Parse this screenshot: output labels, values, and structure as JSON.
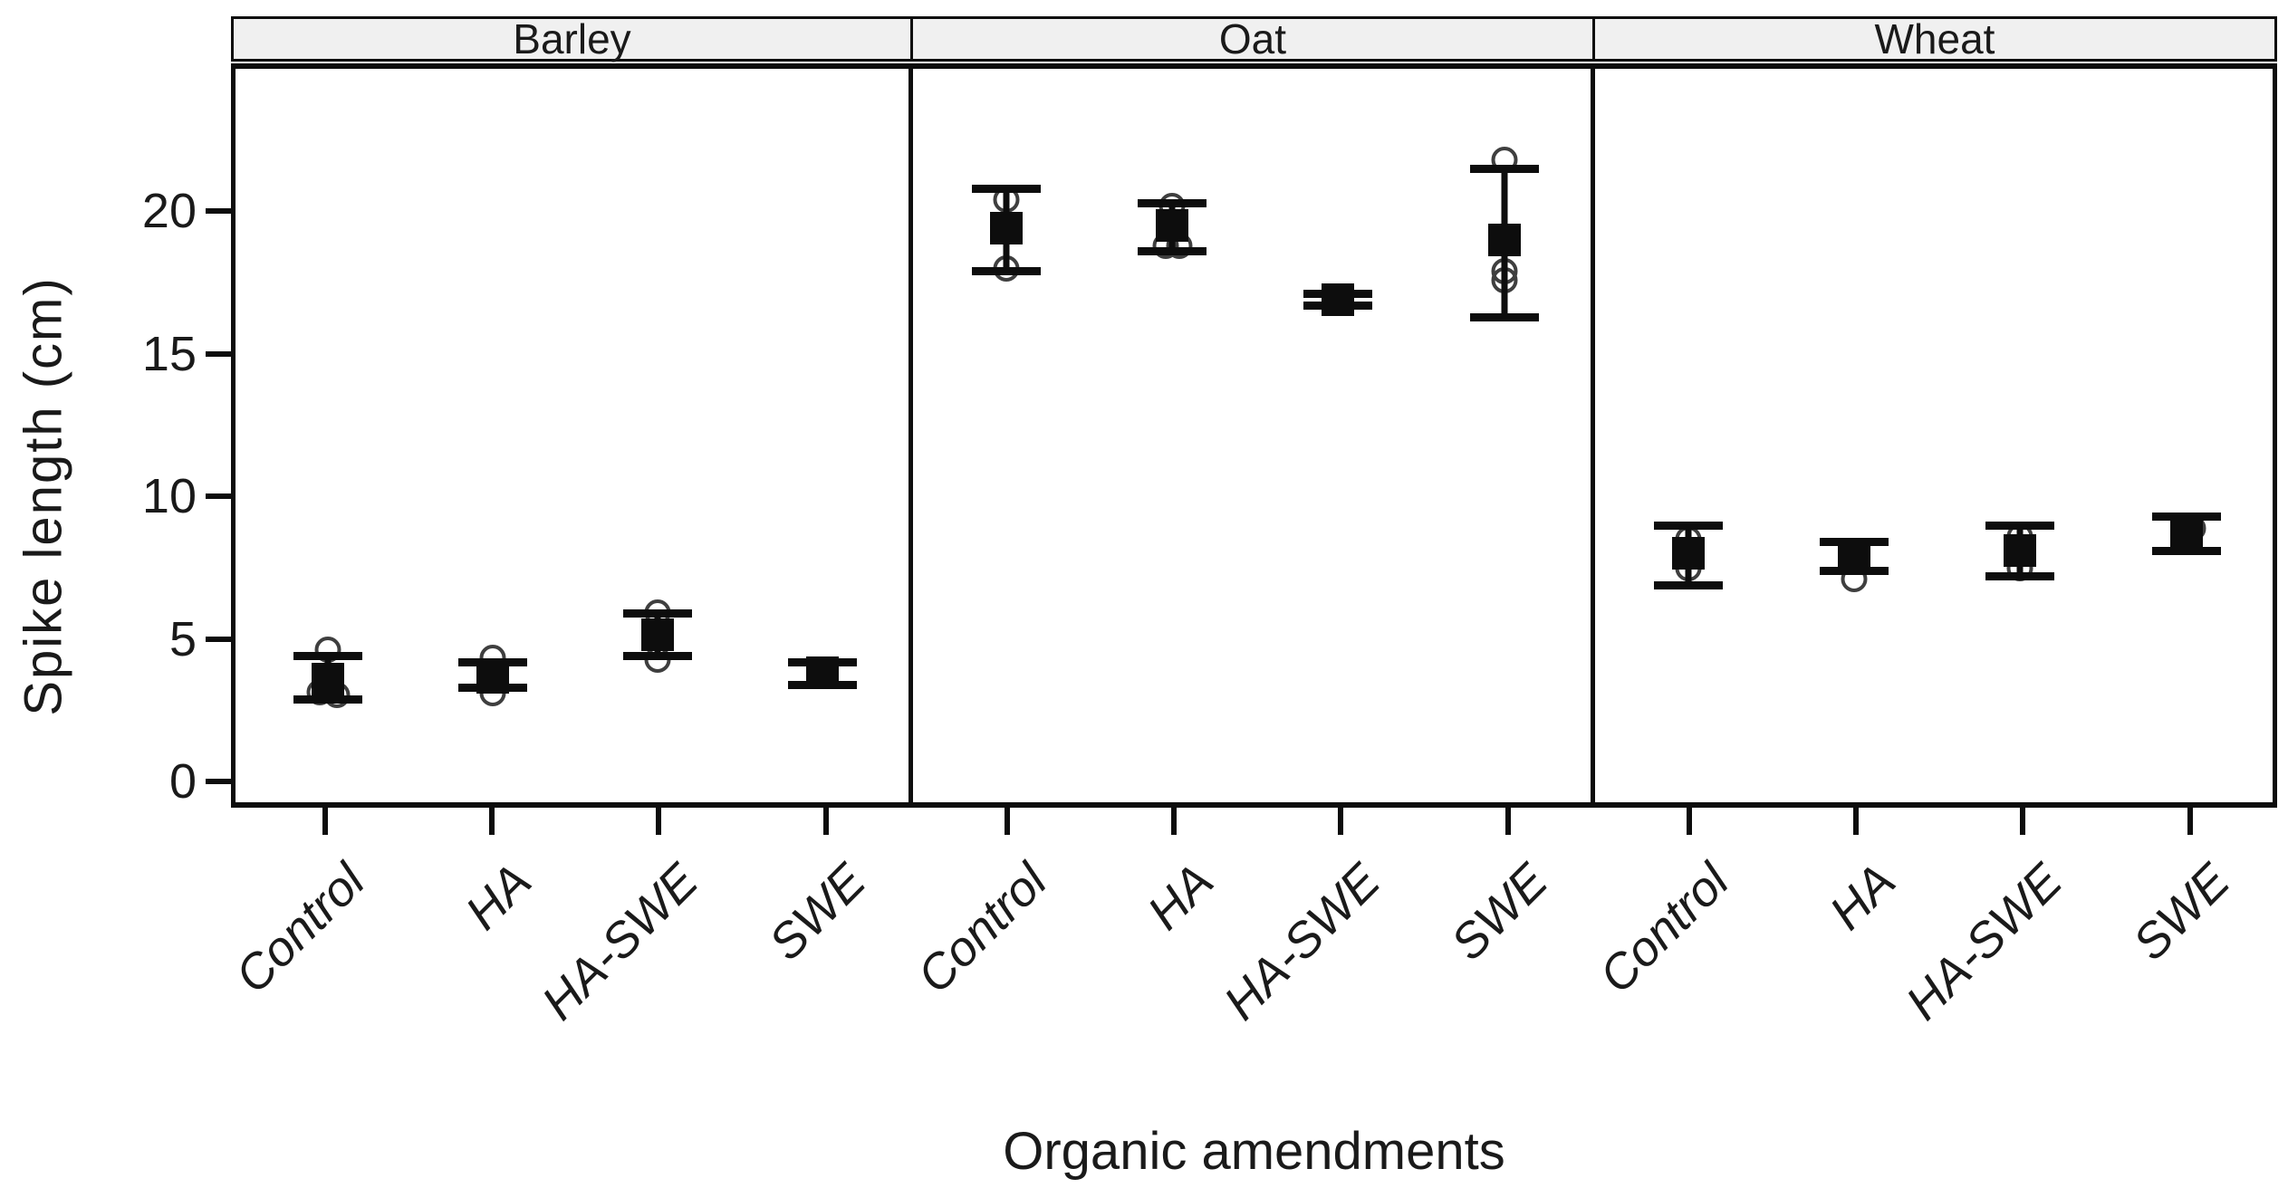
{
  "chart_data": {
    "type": "scatter",
    "subtype": "faceted-means-with-error-bars",
    "title": "",
    "xlabel": "Organic amendments",
    "ylabel": "Spike length (cm)",
    "ylim": [
      -0.9,
      25
    ],
    "yticks": [
      0,
      5,
      10,
      15,
      20
    ],
    "grid": false,
    "legend": "none",
    "mean_marker": "filled-square",
    "raw_marker": "open-circle",
    "categories": [
      "Control",
      "HA",
      "HA-SWE",
      "SWE"
    ],
    "facets": [
      {
        "label": "Barley",
        "groups": [
          {
            "category": "Control",
            "mean": 3.6,
            "lo": 2.9,
            "hi": 4.4,
            "raw": [
              {
                "v": 4.65,
                "dx": 0
              },
              {
                "v": 3.15,
                "dx": -9
              },
              {
                "v": 3.05,
                "dx": 10
              }
            ]
          },
          {
            "category": "HA",
            "mean": 3.65,
            "lo": 3.3,
            "hi": 4.2,
            "raw": [
              {
                "v": 4.35,
                "dx": 0
              },
              {
                "v": 3.1,
                "dx": 0
              }
            ]
          },
          {
            "category": "HA-SWE",
            "mean": 5.15,
            "lo": 4.4,
            "hi": 5.9,
            "raw": [
              {
                "v": 5.95,
                "dx": 0
              },
              {
                "v": 4.3,
                "dx": 0
              }
            ]
          },
          {
            "category": "SWE",
            "mean": 3.8,
            "lo": 3.4,
            "hi": 4.2,
            "raw": []
          }
        ]
      },
      {
        "label": "Oat",
        "groups": [
          {
            "category": "Control",
            "mean": 19.4,
            "lo": 17.9,
            "hi": 20.8,
            "raw": [
              {
                "v": 20.4,
                "dx": 0
              },
              {
                "v": 18.0,
                "dx": 0
              }
            ]
          },
          {
            "category": "HA",
            "mean": 19.5,
            "lo": 18.6,
            "hi": 20.3,
            "raw": [
              {
                "v": 20.2,
                "dx": 0
              },
              {
                "v": 18.8,
                "dx": -7
              },
              {
                "v": 18.8,
                "dx": 8
              }
            ]
          },
          {
            "category": "HA-SWE",
            "mean": 16.9,
            "lo": 16.7,
            "hi": 17.1,
            "raw": [
              {
                "v": 16.9,
                "dx": 0
              }
            ]
          },
          {
            "category": "SWE",
            "mean": 19.0,
            "lo": 16.3,
            "hi": 21.5,
            "raw": [
              {
                "v": 21.8,
                "dx": 0
              },
              {
                "v": 17.9,
                "dx": 0
              },
              {
                "v": 17.6,
                "dx": 0
              }
            ]
          }
        ]
      },
      {
        "label": "Wheat",
        "groups": [
          {
            "category": "Control",
            "mean": 8.0,
            "lo": 6.9,
            "hi": 9.0,
            "raw": [
              {
                "v": 8.5,
                "dx": 0
              },
              {
                "v": 7.5,
                "dx": 0
              }
            ]
          },
          {
            "category": "HA",
            "mean": 7.9,
            "lo": 7.4,
            "hi": 8.4,
            "raw": [
              {
                "v": 7.1,
                "dx": 0
              }
            ]
          },
          {
            "category": "HA-SWE",
            "mean": 8.1,
            "lo": 7.2,
            "hi": 9.0,
            "raw": [
              {
                "v": 8.6,
                "dx": 0
              },
              {
                "v": 7.5,
                "dx": 0
              }
            ]
          },
          {
            "category": "SWE",
            "mean": 8.7,
            "lo": 8.1,
            "hi": 9.3,
            "raw": [
              {
                "v": 8.9,
                "dx": 7
              }
            ]
          }
        ]
      }
    ],
    "category_positions_pct": [
      13.75,
      38.25,
      62.75,
      87.25
    ]
  },
  "ui": {
    "colors": {
      "background": "#ffffff",
      "stroke": "#0d0d0d",
      "strip_background": "#f0f0f0",
      "raw_point_stroke": "#3f3f3f"
    }
  }
}
